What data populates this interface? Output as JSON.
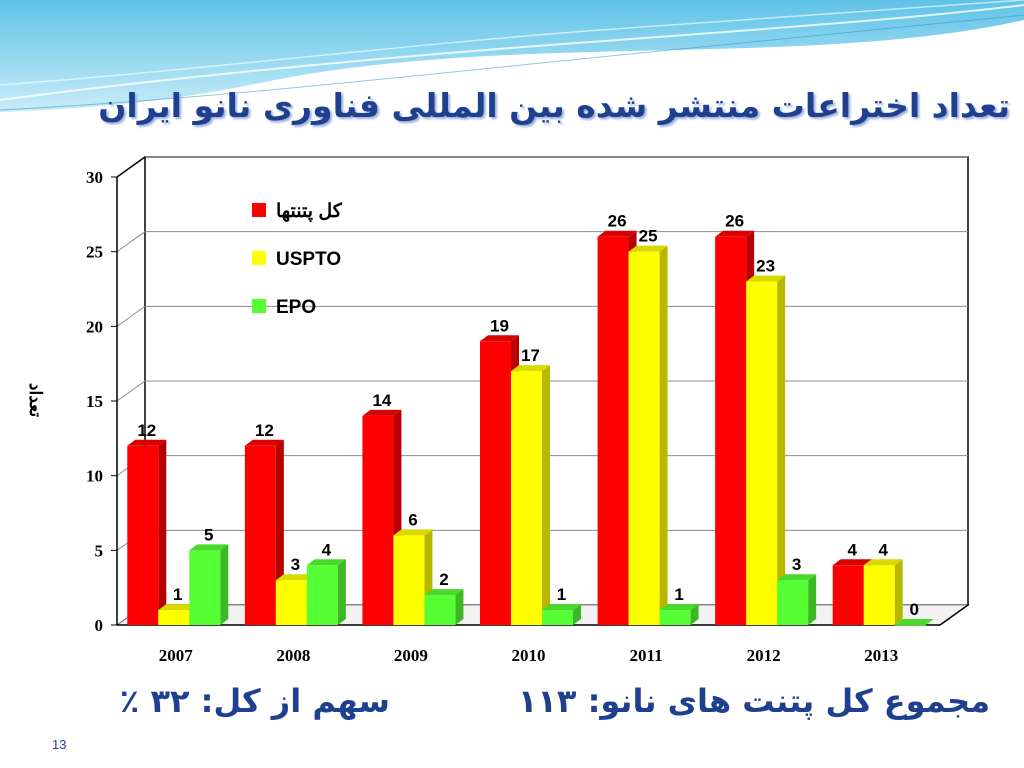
{
  "slide": {
    "title": "تعداد اختراعات منتشر شده بین المللی فناوری نانو ایران",
    "footer_total": "مجموع کل پتنت های نانو: ۱۱۳",
    "footer_share": "سهم از کل: ۳۲ ٪",
    "page_number": "13"
  },
  "chart_data": {
    "type": "bar",
    "title": "",
    "xlabel": "",
    "ylabel": "تعداد",
    "categories": [
      "2007",
      "2008",
      "2009",
      "2010",
      "2011",
      "2012",
      "2013"
    ],
    "series": [
      {
        "name": "کل پتنتها",
        "color": "#ff0000",
        "values": [
          12,
          12,
          14,
          19,
          26,
          26,
          4
        ]
      },
      {
        "name": "USPTO",
        "color": "#ffff00",
        "values": [
          1,
          3,
          6,
          17,
          25,
          23,
          4
        ]
      },
      {
        "name": "EPO",
        "color": "#55ff33",
        "values": [
          5,
          4,
          2,
          1,
          1,
          3,
          0
        ]
      }
    ],
    "ylim": [
      0,
      30
    ],
    "yticks": [
      0,
      5,
      10,
      15,
      20,
      25,
      30
    ],
    "grid": true,
    "legend_position": "top-left",
    "style": "3d"
  }
}
